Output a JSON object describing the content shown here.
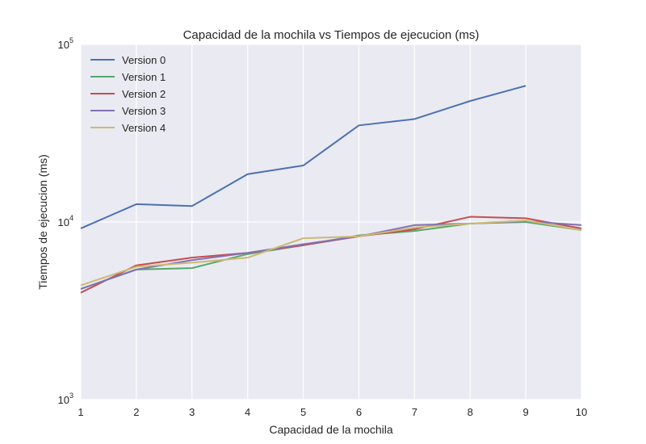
{
  "chart_data": {
    "type": "line",
    "title": "Capacidad de la mochila vs Tiempos de ejecucion (ms)",
    "xlabel": "Capacidad de la mochila",
    "ylabel": "Tiempos de ejecucion (ms)",
    "x": [
      1,
      2,
      3,
      4,
      5,
      6,
      7,
      8,
      9,
      10
    ],
    "xlim": [
      1,
      10
    ],
    "ylim": [
      1000,
      100000
    ],
    "yscale": "log",
    "xticks": [
      "1",
      "2",
      "3",
      "4",
      "5",
      "6",
      "7",
      "8",
      "9",
      "10"
    ],
    "yticks": [
      {
        "base": "10",
        "exp": "3",
        "value": 1000
      },
      {
        "base": "10",
        "exp": "4",
        "value": 10000
      },
      {
        "base": "10",
        "exp": "5",
        "value": 100000
      }
    ],
    "grid": true,
    "legend_position": "top-left",
    "series": [
      {
        "name": "Version 0",
        "color": "#4c72b0",
        "values": [
          9200,
          12600,
          12300,
          18600,
          20800,
          35000,
          38000,
          48000,
          58500,
          null
        ]
      },
      {
        "name": "Version 1",
        "color": "#55a868",
        "values": [
          4200,
          5400,
          5500,
          6600,
          7400,
          8400,
          8900,
          9800,
          10000,
          9000
        ]
      },
      {
        "name": "Version 2",
        "color": "#c44e52",
        "values": [
          4000,
          5700,
          6300,
          6700,
          7400,
          8300,
          9100,
          10700,
          10500,
          9200
        ]
      },
      {
        "name": "Version 3",
        "color": "#8172b2",
        "values": [
          4200,
          5400,
          6100,
          6700,
          7500,
          8300,
          9600,
          9800,
          10100,
          9600
        ]
      },
      {
        "name": "Version 4",
        "color": "#ccb974",
        "values": [
          4400,
          5600,
          5900,
          6300,
          8100,
          8300,
          9300,
          9800,
          10200,
          9000
        ]
      }
    ]
  }
}
